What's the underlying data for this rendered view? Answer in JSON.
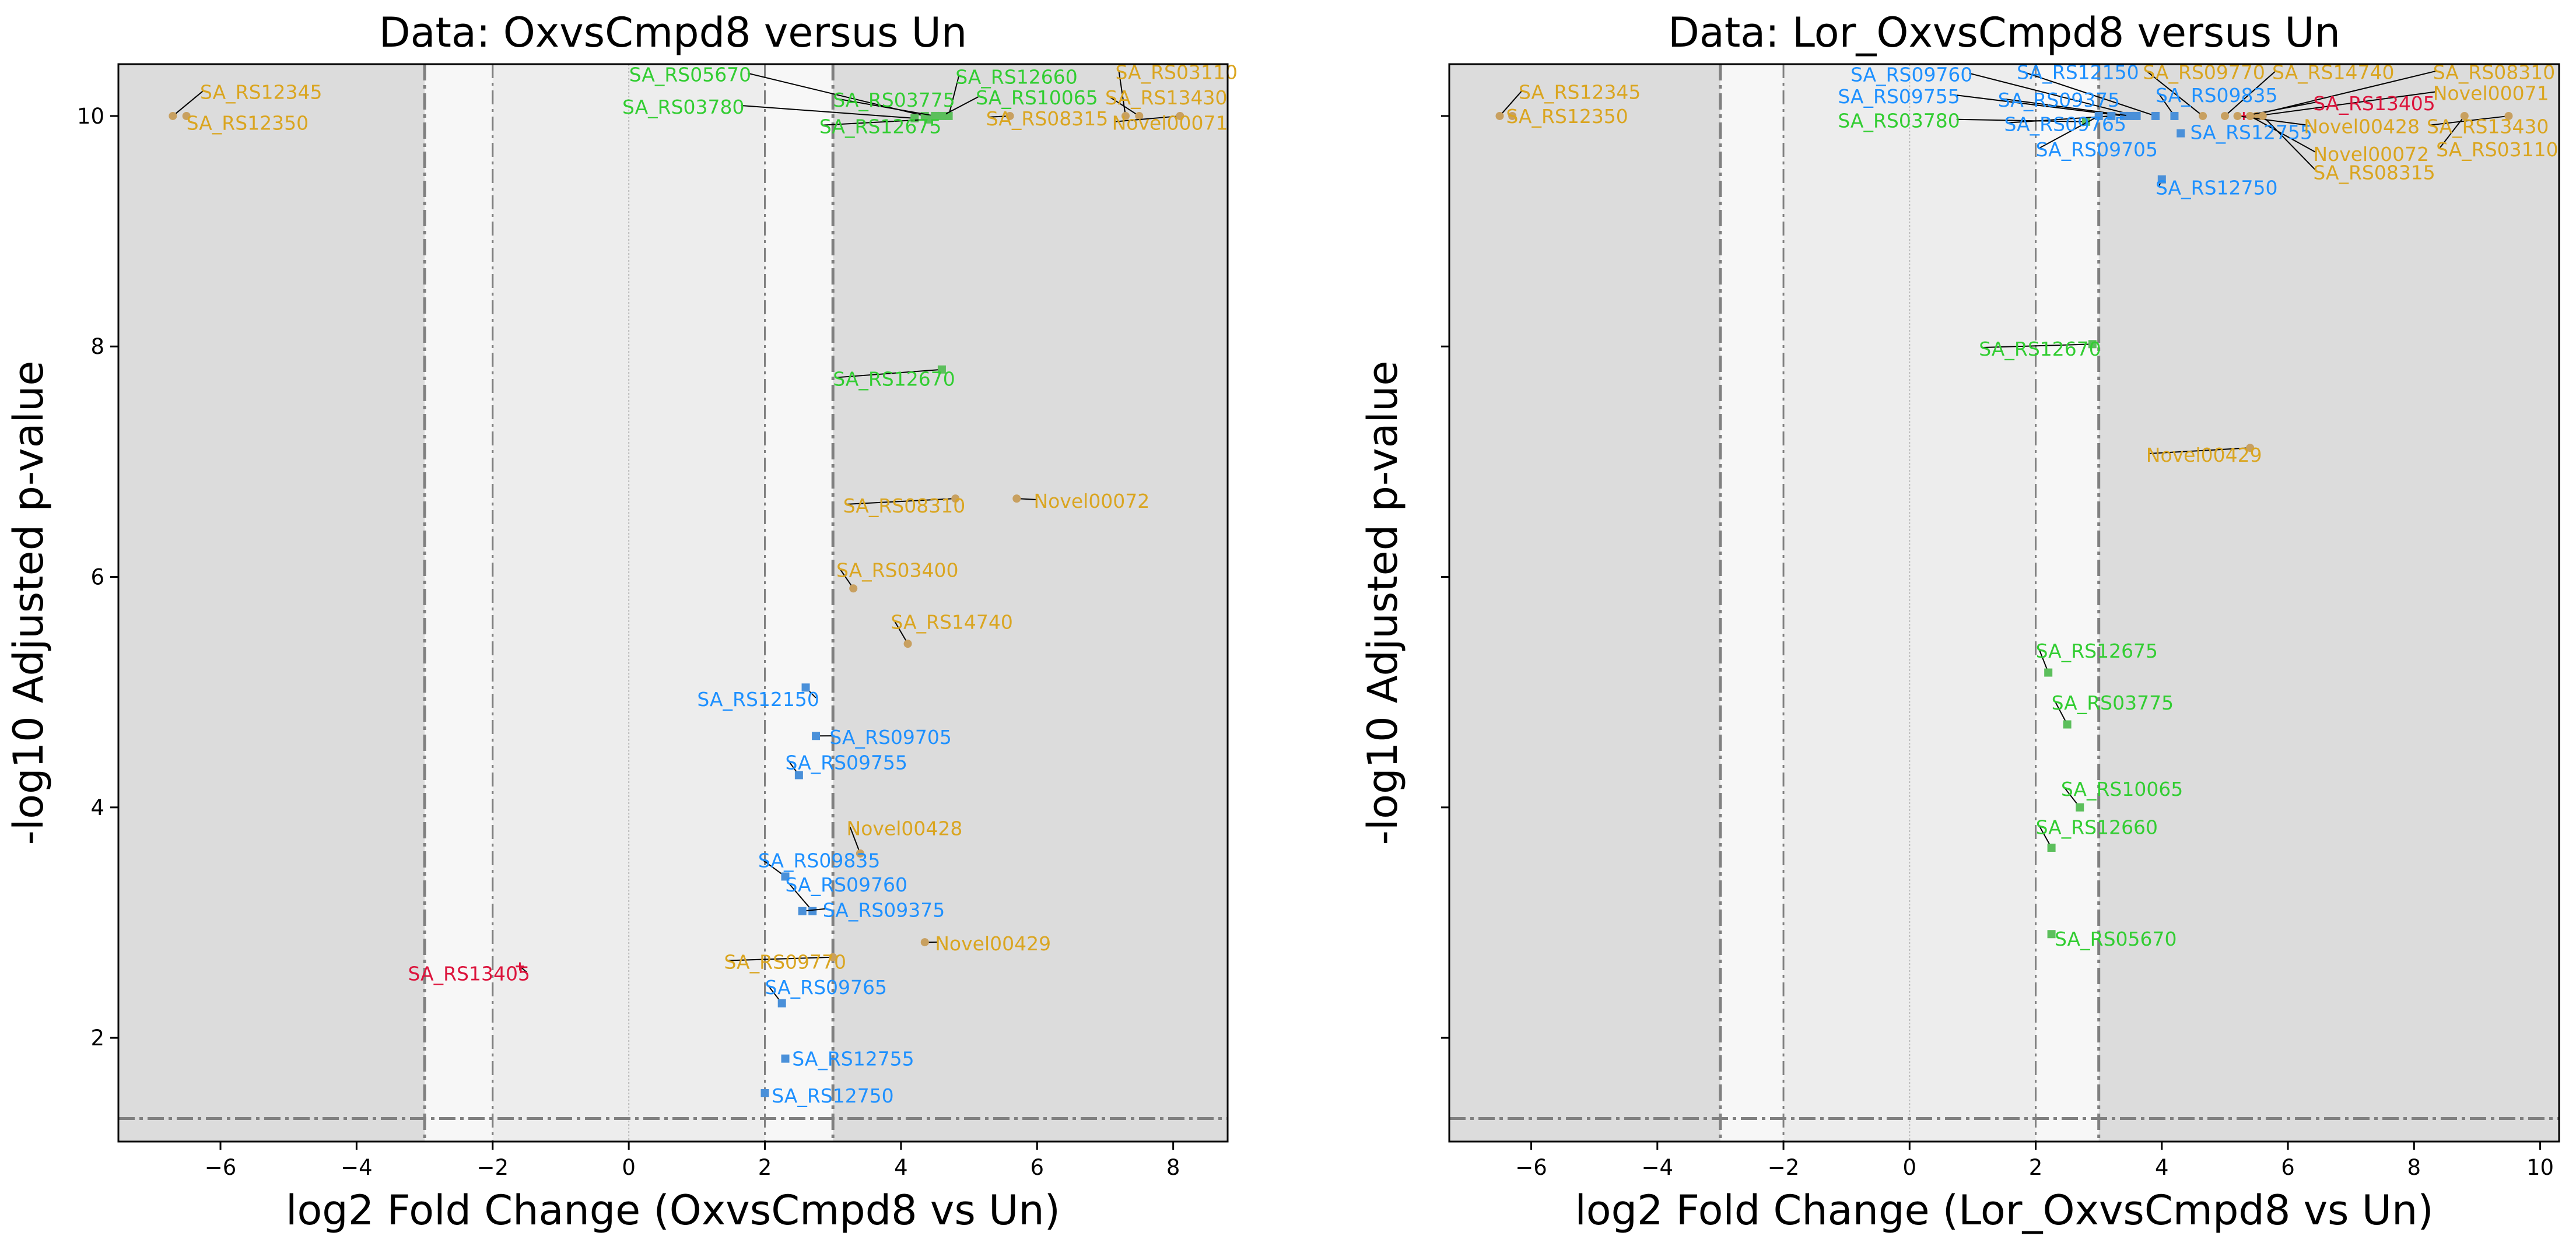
{
  "chart_data": [
    {
      "type": "scatter",
      "title": "Data: OxvsCmpd8 versus Un",
      "xlabel": "log2 Fold Change (OxvsCmpd8 vs Un)",
      "ylabel": "-log10 Adjusted p-value",
      "xlim": [
        -7.5,
        8.8
      ],
      "ylim": [
        1.1,
        10.45
      ],
      "xticks": [
        -6,
        -4,
        -2,
        0,
        2,
        4,
        6,
        8
      ],
      "xtick_labels": [
        "−6",
        "−4",
        "−2",
        "0",
        "2",
        "4",
        "6",
        "8"
      ],
      "yticks": [
        2,
        4,
        6,
        8,
        10
      ],
      "ytick_labels": [
        "2",
        "4",
        "6",
        "8",
        "10"
      ],
      "show_yticklabels": true,
      "fc_thresholds_outer": [
        -3,
        3
      ],
      "fc_thresholds_inner": [
        -2,
        2
      ],
      "pval_threshold": 1.3,
      "grid": false,
      "points": [
        {
          "label": "SA_RS12345",
          "x": -6.7,
          "y": 10.0,
          "group": "orange",
          "lx": -6.3,
          "ly": 10.15,
          "anchor": "start"
        },
        {
          "label": "SA_RS12350",
          "x": -6.5,
          "y": 10.0,
          "group": "orange",
          "lx": -6.5,
          "ly": 9.88,
          "anchor": "start"
        },
        {
          "label": "SA_RS05670",
          "x": 4.35,
          "y": 10.0,
          "group": "green",
          "lx": 1.8,
          "ly": 10.3,
          "anchor": "end"
        },
        {
          "label": "SA_RS03780",
          "x": 4.2,
          "y": 9.98,
          "group": "green",
          "lx": 1.7,
          "ly": 10.02,
          "anchor": "end"
        },
        {
          "label": "SA_RS03775",
          "x": 4.5,
          "y": 10.0,
          "group": "green",
          "lx": 3.0,
          "ly": 10.08,
          "anchor": "start"
        },
        {
          "label": "SA_RS12675",
          "x": 4.4,
          "y": 9.97,
          "group": "green",
          "lx": 2.8,
          "ly": 9.85,
          "anchor": "start"
        },
        {
          "label": "SA_RS12660",
          "x": 4.7,
          "y": 10.0,
          "group": "green",
          "lx": 4.8,
          "ly": 10.28,
          "anchor": "start"
        },
        {
          "label": "SA_RS10065",
          "x": 4.6,
          "y": 10.0,
          "group": "green",
          "lx": 5.1,
          "ly": 10.1,
          "anchor": "start"
        },
        {
          "label": "SA_RS03110",
          "x": 7.3,
          "y": 10.0,
          "group": "orange",
          "lx": 7.15,
          "ly": 10.32,
          "anchor": "start"
        },
        {
          "label": "SA_RS13430",
          "x": 7.5,
          "y": 10.0,
          "group": "orange",
          "lx": 7.0,
          "ly": 10.1,
          "anchor": "start"
        },
        {
          "label": "SA_RS08315",
          "x": 5.6,
          "y": 10.0,
          "group": "orange",
          "lx": 5.25,
          "ly": 9.92,
          "anchor": "start"
        },
        {
          "label": "Novel00071",
          "x": 8.1,
          "y": 10.0,
          "group": "orange",
          "lx": 7.1,
          "ly": 9.88,
          "anchor": "start"
        },
        {
          "label": "SA_RS12670",
          "x": 4.6,
          "y": 7.8,
          "group": "green",
          "lx": 3.0,
          "ly": 7.66,
          "anchor": "start"
        },
        {
          "label": "SA_RS08310",
          "x": 4.8,
          "y": 6.68,
          "group": "orange",
          "lx": 3.15,
          "ly": 6.56,
          "anchor": "start"
        },
        {
          "label": "Novel00072",
          "x": 5.7,
          "y": 6.68,
          "group": "orange",
          "lx": 5.95,
          "ly": 6.6,
          "anchor": "start"
        },
        {
          "label": "SA_RS03400",
          "x": 3.3,
          "y": 5.9,
          "group": "orange",
          "lx": 3.05,
          "ly": 6.0,
          "anchor": "start"
        },
        {
          "label": "SA_RS14740",
          "x": 4.1,
          "y": 5.42,
          "group": "orange",
          "lx": 3.85,
          "ly": 5.55,
          "anchor": "start"
        },
        {
          "label": "SA_RS12150",
          "x": 2.6,
          "y": 5.04,
          "group": "blue",
          "lx": 2.8,
          "ly": 4.88,
          "anchor": "end"
        },
        {
          "label": "SA_RS09705",
          "x": 2.75,
          "y": 4.62,
          "group": "blue",
          "lx": 2.95,
          "ly": 4.55,
          "anchor": "start"
        },
        {
          "label": "SA_RS09755",
          "x": 2.5,
          "y": 4.28,
          "group": "blue",
          "lx": 2.3,
          "ly": 4.33,
          "anchor": "start"
        },
        {
          "label": "Novel00428",
          "x": 3.4,
          "y": 3.6,
          "group": "orange",
          "lx": 3.2,
          "ly": 3.76,
          "anchor": "start"
        },
        {
          "label": "SA_RS09835",
          "x": 2.3,
          "y": 3.4,
          "group": "blue",
          "lx": 1.9,
          "ly": 3.48,
          "anchor": "start"
        },
        {
          "label": "SA_RS09760",
          "x": 2.7,
          "y": 3.1,
          "group": "blue",
          "lx": 2.3,
          "ly": 3.27,
          "anchor": "start"
        },
        {
          "label": "SA_RS09375",
          "x": 2.55,
          "y": 3.1,
          "group": "blue",
          "lx": 2.85,
          "ly": 3.05,
          "anchor": "start"
        },
        {
          "label": "SA_RS09770",
          "x": 3.0,
          "y": 2.7,
          "group": "orange",
          "lx": 1.4,
          "ly": 2.6,
          "anchor": "start"
        },
        {
          "label": "Novel00429",
          "x": 4.35,
          "y": 2.83,
          "group": "orange",
          "lx": 4.5,
          "ly": 2.76,
          "anchor": "start"
        },
        {
          "label": "SA_RS13405",
          "x": -1.6,
          "y": 2.62,
          "group": "red",
          "lx": -1.45,
          "ly": 2.5,
          "anchor": "end"
        },
        {
          "label": "SA_RS09765",
          "x": 2.25,
          "y": 2.3,
          "group": "blue",
          "lx": 2.0,
          "ly": 2.38,
          "anchor": "start"
        },
        {
          "label": "SA_RS12755",
          "x": 2.3,
          "y": 1.82,
          "group": "blue",
          "lx": 2.4,
          "ly": 1.76,
          "anchor": "start"
        },
        {
          "label": "SA_RS12750",
          "x": 2.0,
          "y": 1.52,
          "group": "blue",
          "lx": 2.1,
          "ly": 1.44,
          "anchor": "start"
        }
      ]
    },
    {
      "type": "scatter",
      "title": "Data: Lor_OxvsCmpd8 versus Un",
      "xlabel": "log2 Fold Change (Lor_OxvsCmpd8 vs Un)",
      "ylabel": "-log10 Adjusted p-value",
      "xlim": [
        -7.3,
        10.3
      ],
      "ylim": [
        1.1,
        10.45
      ],
      "xticks": [
        -6,
        -4,
        -2,
        0,
        2,
        4,
        6,
        8,
        10
      ],
      "xtick_labels": [
        "−6",
        "−4",
        "−2",
        "0",
        "2",
        "4",
        "6",
        "8",
        "10"
      ],
      "yticks": [
        2,
        4,
        6,
        8,
        10
      ],
      "ytick_labels": [
        "2",
        "4",
        "6",
        "8",
        "10"
      ],
      "show_yticklabels": false,
      "fc_thresholds_outer": [
        -3,
        3
      ],
      "fc_thresholds_inner": [
        -2,
        2
      ],
      "pval_threshold": 1.3,
      "grid": false,
      "points": [
        {
          "label": "SA_RS12345",
          "x": -6.5,
          "y": 10.0,
          "group": "orange",
          "lx": -6.2,
          "ly": 10.15,
          "anchor": "start"
        },
        {
          "label": "SA_RS12350",
          "x": -6.3,
          "y": 10.0,
          "group": "orange",
          "lx": -6.4,
          "ly": 9.94,
          "anchor": "start"
        },
        {
          "label": "SA_RS09760",
          "x": 3.6,
          "y": 10.0,
          "group": "blue",
          "lx": 1.0,
          "ly": 10.3,
          "anchor": "end"
        },
        {
          "label": "SA_RS09755",
          "x": 3.4,
          "y": 10.0,
          "group": "blue",
          "lx": 0.8,
          "ly": 10.11,
          "anchor": "end"
        },
        {
          "label": "SA_RS03780",
          "x": 2.8,
          "y": 9.95,
          "group": "green",
          "lx": 0.8,
          "ly": 9.9,
          "anchor": "end"
        },
        {
          "label": "SA_RS12150",
          "x": 3.9,
          "y": 10.0,
          "group": "blue",
          "lx": 1.7,
          "ly": 10.32,
          "anchor": "start"
        },
        {
          "label": "SA_RS09375",
          "x": 3.5,
          "y": 10.0,
          "group": "blue",
          "lx": 1.4,
          "ly": 10.08,
          "anchor": "start"
        },
        {
          "label": "SA_RS09835",
          "x": 4.2,
          "y": 10.0,
          "group": "blue",
          "lx": 3.9,
          "ly": 10.12,
          "anchor": "start"
        },
        {
          "label": "SA_RS09765",
          "x": 3.2,
          "y": 10.0,
          "group": "blue",
          "lx": 1.5,
          "ly": 9.87,
          "anchor": "start"
        },
        {
          "label": "SA_RS09705",
          "x": 3.0,
          "y": 10.0,
          "group": "blue",
          "lx": 2.0,
          "ly": 9.65,
          "anchor": "start"
        },
        {
          "label": "SA_RS12755",
          "x": 4.3,
          "y": 9.85,
          "group": "blue",
          "lx": 4.45,
          "ly": 9.8,
          "anchor": "start"
        },
        {
          "label": "SA_RS12750",
          "x": 4.0,
          "y": 9.45,
          "group": "blue",
          "lx": 3.9,
          "ly": 9.32,
          "anchor": "start"
        },
        {
          "label": "SA_RS09770",
          "x": 4.65,
          "y": 10.0,
          "group": "orange",
          "lx": 3.7,
          "ly": 10.32,
          "anchor": "start"
        },
        {
          "label": "SA_RS14740",
          "x": 5.0,
          "y": 10.0,
          "group": "orange",
          "lx": 5.75,
          "ly": 10.32,
          "anchor": "start"
        },
        {
          "label": "SA_RS08310",
          "x": 5.4,
          "y": 10.0,
          "group": "orange",
          "lx": 8.3,
          "ly": 10.32,
          "anchor": "start"
        },
        {
          "label": "Novel00071",
          "x": 5.5,
          "y": 10.0,
          "group": "orange",
          "lx": 8.3,
          "ly": 10.14,
          "anchor": "start"
        },
        {
          "label": "SA_RS13405",
          "x": 5.3,
          "y": 10.0,
          "group": "red",
          "lx": 6.4,
          "ly": 10.05,
          "anchor": "start"
        },
        {
          "label": "SA_RS13430",
          "x": 9.5,
          "y": 10.0,
          "group": "orange",
          "lx": 8.2,
          "ly": 9.85,
          "anchor": "start"
        },
        {
          "label": "Novel00428",
          "x": 5.2,
          "y": 10.0,
          "group": "orange",
          "lx": 6.25,
          "ly": 9.85,
          "anchor": "start"
        },
        {
          "label": "SA_RS03110",
          "x": 8.8,
          "y": 10.0,
          "group": "orange",
          "lx": 8.35,
          "ly": 9.65,
          "anchor": "start"
        },
        {
          "label": "Novel00072",
          "x": 5.4,
          "y": 10.0,
          "group": "orange",
          "lx": 6.4,
          "ly": 9.61,
          "anchor": "start"
        },
        {
          "label": "SA_RS08315",
          "x": 5.6,
          "y": 10.0,
          "group": "orange",
          "lx": 6.4,
          "ly": 9.45,
          "anchor": "start"
        },
        {
          "label": "SA_RS12670",
          "x": 2.9,
          "y": 8.02,
          "group": "green",
          "lx": 1.1,
          "ly": 7.92,
          "anchor": "start"
        },
        {
          "label": "Novel00429",
          "x": 5.4,
          "y": 7.12,
          "group": "orange",
          "lx": 3.75,
          "ly": 7.0,
          "anchor": "start"
        },
        {
          "label": "SA_RS12675",
          "x": 2.2,
          "y": 5.17,
          "group": "green",
          "lx": 2.0,
          "ly": 5.3,
          "anchor": "start"
        },
        {
          "label": "SA_RS03775",
          "x": 2.5,
          "y": 4.72,
          "group": "green",
          "lx": 2.25,
          "ly": 4.85,
          "anchor": "start"
        },
        {
          "label": "SA_RS10065",
          "x": 2.7,
          "y": 4.0,
          "group": "green",
          "lx": 2.4,
          "ly": 4.1,
          "anchor": "start"
        },
        {
          "label": "SA_RS12660",
          "x": 2.25,
          "y": 3.65,
          "group": "green",
          "lx": 2.0,
          "ly": 3.77,
          "anchor": "start"
        },
        {
          "label": "SA_RS05670",
          "x": 2.25,
          "y": 2.9,
          "group": "green",
          "lx": 2.3,
          "ly": 2.8,
          "anchor": "start"
        }
      ]
    }
  ],
  "colors": {
    "orange": "#DAA520",
    "green": "#32CD32",
    "blue": "#1E90FF",
    "red": "#DC143C",
    "orange_marker": "#C8A060",
    "green_marker": "#5CBF5C",
    "blue_marker": "#4A90D9",
    "red_marker": "#DC143C",
    "zone_outer": "#DCDCDC",
    "zone_mid": "#EDEDED",
    "zone_inner": "#F7F7F7",
    "threshold_line": "#808080"
  }
}
